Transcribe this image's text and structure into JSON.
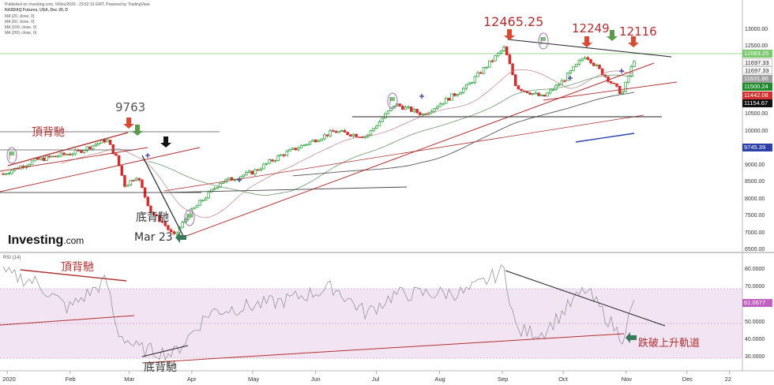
{
  "header": {
    "line1": "Published on Investing.com, 5/Nov/2020 - 23:52:10 GMT, Powered by TradingView.",
    "line2": "NASDAQ Futures, USA, Dec 20, D",
    "line3": "MA (20, close, 0)",
    "line4": "MA (50, close, 0)",
    "line5": "MA (100, close, 0)",
    "line6": "MA (200, close, 0)"
  },
  "logo": {
    "brand": "Investing",
    "suffix": ".com"
  },
  "annotations": {
    "peak_feb": "9763",
    "peak_sep": "12465.25",
    "peak_oct": "12249",
    "peak_nov": "12116",
    "top_divergence": "頂背馳",
    "bottom_divergence": "底背馳",
    "march_low": "Mar 23",
    "rsi_top_divergence": "頂背馳",
    "rsi_bottom_divergence": "底背馳",
    "rsi_break": "跌破上升軌道"
  },
  "price_axis": {
    "ticks": [
      "13000.00",
      "12500.00",
      "12000.00",
      "11500.00",
      "11000.00",
      "10500.00",
      "10000.00",
      "9500.00",
      "9000.00",
      "8500.00",
      "8000.00",
      "7500.00",
      "7000.00",
      "6500.00"
    ],
    "tags": [
      {
        "label": "12083.25",
        "color": "#7bc96f"
      },
      {
        "label": "11697.33",
        "color": "#ffffff"
      },
      {
        "label": "11697.33",
        "color": "#ffffff"
      },
      {
        "label": "11631.80",
        "color": "#9e9e9e"
      },
      {
        "label": "11500.24",
        "color": "#1e8a2c"
      },
      {
        "label": "11442.08",
        "color": "#d32f2f"
      },
      {
        "label": "11154.67",
        "color": "#111111"
      },
      {
        "label": "9745.39",
        "color": "#2b3fa8"
      }
    ]
  },
  "rsi_panel": {
    "title": "RSI (14)",
    "ticks": [
      "80.0000",
      "70.0000",
      "60.0000",
      "50.0000",
      "40.0000",
      "30.0000"
    ],
    "current": "61.0677"
  },
  "x_axis": {
    "labels": [
      "2020",
      "Feb",
      "Mar",
      "Apr",
      "May",
      "Jun",
      "Jul",
      "Aug",
      "Sep",
      "Oct",
      "Nov",
      "Dec",
      "22"
    ]
  },
  "colors": {
    "up": "#1e9e2e",
    "down": "#d32f2f",
    "annotation": "#b03030",
    "rsi_band": "#f3e4f3"
  },
  "chart_data": {
    "type": "candlestick",
    "ylim": [
      6300,
      13150
    ],
    "anchors": [
      [
        "2019-12-30",
        8750
      ],
      [
        "2020-01-15",
        9150
      ],
      [
        "2020-02-05",
        9400
      ],
      [
        "2020-02-19",
        9763
      ],
      [
        "2020-02-24",
        9200
      ],
      [
        "2020-02-28",
        8400
      ],
      [
        "2020-03-05",
        8700
      ],
      [
        "2020-03-12",
        7600
      ],
      [
        "2020-03-18",
        7300
      ],
      [
        "2020-03-23",
        6900
      ],
      [
        "2020-03-31",
        7600
      ],
      [
        "2020-04-15",
        8500
      ],
      [
        "2020-05-01",
        8800
      ],
      [
        "2020-05-15",
        9300
      ],
      [
        "2020-06-10",
        10000
      ],
      [
        "2020-06-26",
        9850
      ],
      [
        "2020-07-10",
        10800
      ],
      [
        "2020-07-24",
        10500
      ],
      [
        "2020-08-14",
        11300
      ],
      [
        "2020-09-02",
        12465.25
      ],
      [
        "2020-09-08",
        11300
      ],
      [
        "2020-09-21",
        11000
      ],
      [
        "2020-10-01",
        11500
      ],
      [
        "2020-10-12",
        12249
      ],
      [
        "2020-10-30",
        11100
      ],
      [
        "2020-11-05",
        12116
      ]
    ],
    "rsi": [
      [
        "2019-12-30",
        78
      ],
      [
        "2020-01-15",
        73
      ],
      [
        "2020-01-31",
        58
      ],
      [
        "2020-02-19",
        74
      ],
      [
        "2020-02-24",
        45
      ],
      [
        "2020-03-05",
        35
      ],
      [
        "2020-03-23",
        32
      ],
      [
        "2020-04-10",
        56
      ],
      [
        "2020-05-15",
        62
      ],
      [
        "2020-06-10",
        70
      ],
      [
        "2020-06-26",
        55
      ],
      [
        "2020-07-10",
        66
      ],
      [
        "2020-08-14",
        67
      ],
      [
        "2020-09-02",
        80
      ],
      [
        "2020-09-08",
        45
      ],
      [
        "2020-09-21",
        44
      ],
      [
        "2020-10-12",
        69
      ],
      [
        "2020-10-30",
        41
      ],
      [
        "2020-11-05",
        61.0677
      ]
    ]
  }
}
